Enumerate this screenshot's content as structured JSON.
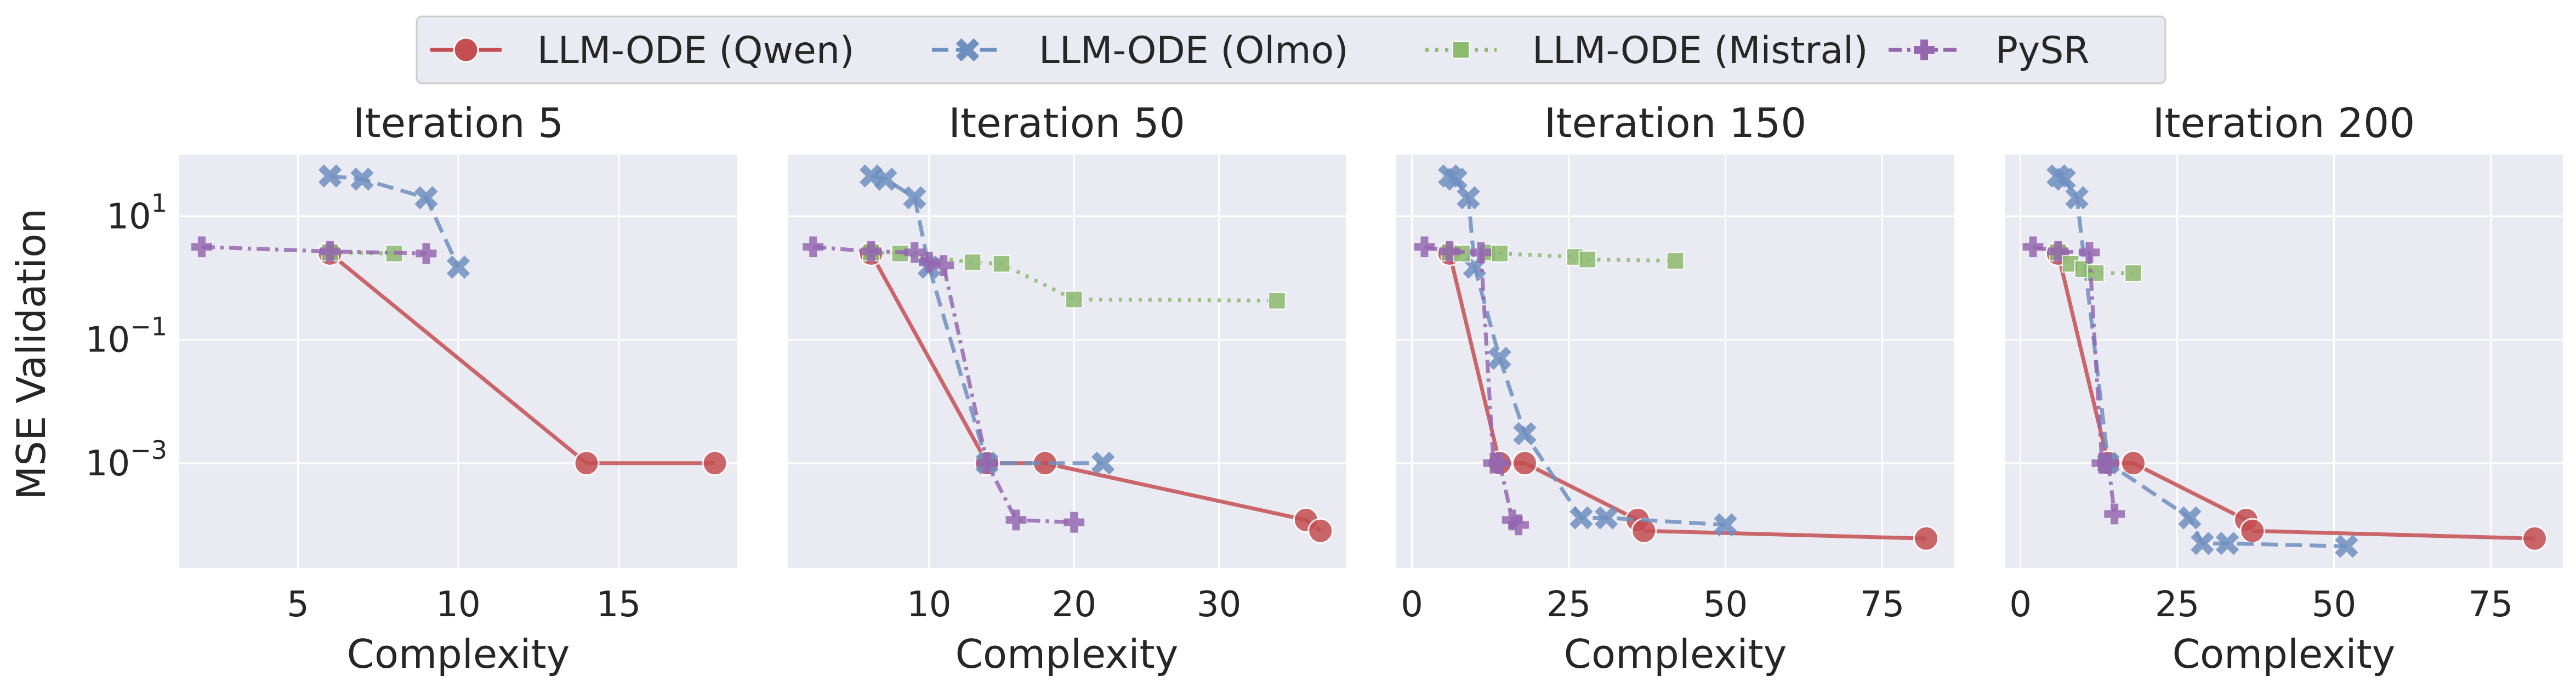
{
  "chart_data": {
    "type": "line",
    "ylabel": "MSE Validation",
    "yscale": "log",
    "ylim": [
      2e-05,
      100
    ],
    "yticks": [
      {
        "value": 10,
        "label": "10",
        "exp": "1"
      },
      {
        "value": 0.1,
        "label": "10",
        "exp": "−1"
      },
      {
        "value": 0.001,
        "label": "10",
        "exp": "−3"
      }
    ],
    "grid": true,
    "legend_position": "top-center",
    "legend": [
      "LLM-ODE (Qwen)",
      "LLM-ODE (Olmo)",
      "LLM-ODE (Mistral)",
      "PySR"
    ],
    "series_styles": [
      {
        "name": "LLM-ODE (Qwen)",
        "color": "#c44e52",
        "marker": "circle",
        "dash": "solid"
      },
      {
        "name": "LLM-ODE (Olmo)",
        "color": "#6f8fbf",
        "marker": "x",
        "dash": "dashed"
      },
      {
        "name": "LLM-ODE (Mistral)",
        "color": "#8dbb6e",
        "marker": "square",
        "dash": "dotted"
      },
      {
        "name": "PySR",
        "color": "#9467b0",
        "marker": "plus",
        "dash": "dashdot"
      }
    ],
    "panels": [
      {
        "title": "Iteration 5",
        "xlabel": "Complexity",
        "xlim": [
          1.3,
          18.7
        ],
        "xticks": [
          5,
          10,
          15
        ],
        "series": [
          {
            "name": "LLM-ODE (Qwen)",
            "points": [
              [
                6,
                2.5
              ],
              [
                14,
                0.001
              ],
              [
                18,
                0.001
              ]
            ]
          },
          {
            "name": "LLM-ODE (Olmo)",
            "points": [
              [
                6,
                45
              ],
              [
                7,
                40
              ],
              [
                9,
                20
              ],
              [
                10,
                1.5
              ]
            ]
          },
          {
            "name": "LLM-ODE (Mistral)",
            "points": [
              [
                6,
                2.6
              ],
              [
                8,
                2.5
              ]
            ]
          },
          {
            "name": "PySR",
            "points": [
              [
                2,
                3.2
              ],
              [
                6,
                2.7
              ],
              [
                9,
                2.5
              ]
            ]
          }
        ]
      },
      {
        "title": "Iteration 50",
        "xlabel": "Complexity",
        "xlim": [
          0.25,
          38.75
        ],
        "xticks": [
          10,
          20,
          30
        ],
        "series": [
          {
            "name": "LLM-ODE (Qwen)",
            "points": [
              [
                6,
                2.5
              ],
              [
                14,
                0.001
              ],
              [
                18,
                0.001
              ],
              [
                36,
                0.00012
              ],
              [
                37,
                8e-05
              ]
            ]
          },
          {
            "name": "LLM-ODE (Olmo)",
            "points": [
              [
                6,
                45
              ],
              [
                7,
                40
              ],
              [
                9,
                20
              ],
              [
                10,
                1.5
              ],
              [
                14,
                0.001
              ],
              [
                22,
                0.001
              ]
            ]
          },
          {
            "name": "LLM-ODE (Mistral)",
            "points": [
              [
                6,
                2.6
              ],
              [
                8,
                2.5
              ],
              [
                13,
                1.8
              ],
              [
                15,
                1.7
              ],
              [
                20,
                0.45
              ],
              [
                34,
                0.43
              ]
            ]
          },
          {
            "name": "PySR",
            "points": [
              [
                2,
                3.2
              ],
              [
                6,
                2.7
              ],
              [
                9,
                2.6
              ],
              [
                10,
                1.8
              ],
              [
                11,
                1.6
              ],
              [
                14,
                0.001
              ],
              [
                16,
                0.00012
              ],
              [
                20,
                0.00011
              ]
            ]
          }
        ]
      },
      {
        "title": "Iteration 150",
        "xlabel": "Complexity",
        "xlim": [
          -2.5,
          86.5
        ],
        "xticks": [
          0,
          25,
          50,
          75
        ],
        "series": [
          {
            "name": "LLM-ODE (Qwen)",
            "points": [
              [
                6,
                2.5
              ],
              [
                14,
                0.001
              ],
              [
                18,
                0.001
              ],
              [
                36,
                0.00012
              ],
              [
                37,
                8e-05
              ],
              [
                82,
                6e-05
              ]
            ]
          },
          {
            "name": "LLM-ODE (Olmo)",
            "points": [
              [
                6,
                45
              ],
              [
                7,
                40
              ],
              [
                9,
                20
              ],
              [
                10,
                1.5
              ],
              [
                14,
                0.05
              ],
              [
                18,
                0.003
              ],
              [
                27,
                0.00013
              ],
              [
                31,
                0.00013
              ],
              [
                50,
                0.0001
              ]
            ]
          },
          {
            "name": "LLM-ODE (Mistral)",
            "points": [
              [
                6,
                2.6
              ],
              [
                8,
                2.5
              ],
              [
                12,
                2.6
              ],
              [
                14,
                2.5
              ],
              [
                26,
                2.2
              ],
              [
                28,
                2.0
              ],
              [
                42,
                1.9
              ]
            ]
          },
          {
            "name": "PySR",
            "points": [
              [
                2,
                3.2
              ],
              [
                6,
                2.7
              ],
              [
                11,
                2.6
              ],
              [
                13,
                0.001
              ],
              [
                14,
                0.001
              ],
              [
                16,
                0.00012
              ],
              [
                17,
                0.0001
              ]
            ]
          }
        ]
      },
      {
        "title": "Iteration 200",
        "xlabel": "Complexity",
        "xlim": [
          -2.5,
          86.5
        ],
        "xticks": [
          0,
          25,
          50,
          75
        ],
        "series": [
          {
            "name": "LLM-ODE (Qwen)",
            "points": [
              [
                6,
                2.5
              ],
              [
                14,
                0.001
              ],
              [
                18,
                0.001
              ],
              [
                36,
                0.00012
              ],
              [
                37,
                8e-05
              ],
              [
                82,
                6e-05
              ]
            ]
          },
          {
            "name": "LLM-ODE (Olmo)",
            "points": [
              [
                6,
                45
              ],
              [
                7,
                40
              ],
              [
                9,
                20
              ],
              [
                14,
                0.001
              ],
              [
                27,
                0.00013
              ],
              [
                29,
                5e-05
              ],
              [
                33,
                5e-05
              ],
              [
                52,
                4.5e-05
              ]
            ]
          },
          {
            "name": "LLM-ODE (Mistral)",
            "points": [
              [
                6,
                2.6
              ],
              [
                8,
                1.7
              ],
              [
                10,
                1.4
              ],
              [
                12,
                1.2
              ],
              [
                18,
                1.2
              ]
            ]
          },
          {
            "name": "PySR",
            "points": [
              [
                2,
                3.2
              ],
              [
                6,
                2.7
              ],
              [
                11,
                2.6
              ],
              [
                13,
                0.001
              ],
              [
                14,
                0.001
              ],
              [
                15,
                0.00015
              ]
            ]
          }
        ]
      }
    ]
  }
}
